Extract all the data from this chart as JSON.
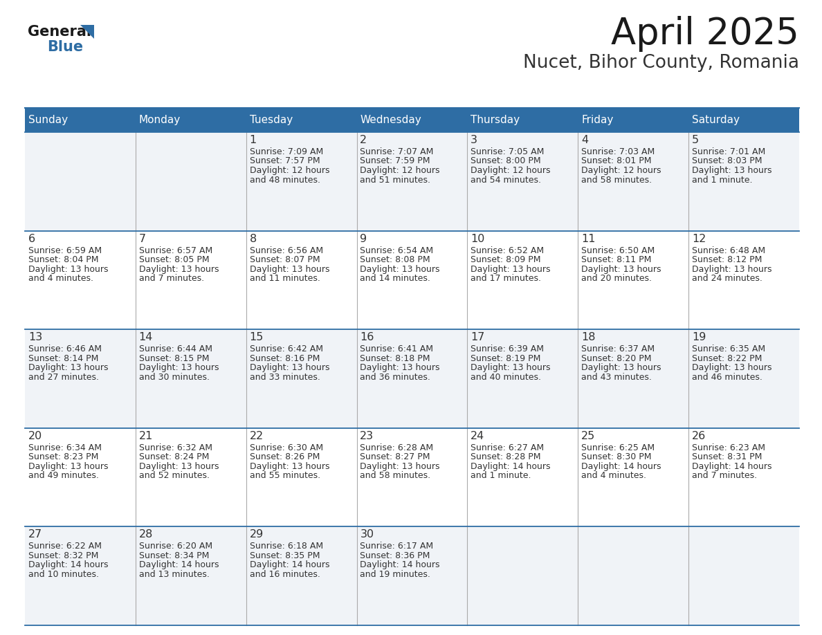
{
  "title": "April 2025",
  "subtitle": "Nucet, Bihor County, Romania",
  "header_bg_color": "#2E6DA4",
  "header_text_color": "#FFFFFF",
  "day_names": [
    "Sunday",
    "Monday",
    "Tuesday",
    "Wednesday",
    "Thursday",
    "Friday",
    "Saturday"
  ],
  "bg_color": "#FFFFFF",
  "cell_bg_light": "#F0F3F7",
  "cell_bg_white": "#FFFFFF",
  "border_color": "#2E6DA4",
  "divider_color": "#AAAAAA",
  "text_color": "#333333",
  "title_color": "#1a1a1a",
  "subtitle_color": "#333333",
  "general_text_color": "#1a1a1a",
  "general_blue_color": "#2E6DA4",
  "days": [
    {
      "date": 1,
      "col": 2,
      "row": 0,
      "sunrise": "7:09 AM",
      "sunset": "7:57 PM",
      "daylight_h": "12 hours",
      "daylight_m": "48 minutes"
    },
    {
      "date": 2,
      "col": 3,
      "row": 0,
      "sunrise": "7:07 AM",
      "sunset": "7:59 PM",
      "daylight_h": "12 hours",
      "daylight_m": "51 minutes"
    },
    {
      "date": 3,
      "col": 4,
      "row": 0,
      "sunrise": "7:05 AM",
      "sunset": "8:00 PM",
      "daylight_h": "12 hours",
      "daylight_m": "54 minutes"
    },
    {
      "date": 4,
      "col": 5,
      "row": 0,
      "sunrise": "7:03 AM",
      "sunset": "8:01 PM",
      "daylight_h": "12 hours",
      "daylight_m": "58 minutes"
    },
    {
      "date": 5,
      "col": 6,
      "row": 0,
      "sunrise": "7:01 AM",
      "sunset": "8:03 PM",
      "daylight_h": "13 hours",
      "daylight_m": "1 minute"
    },
    {
      "date": 6,
      "col": 0,
      "row": 1,
      "sunrise": "6:59 AM",
      "sunset": "8:04 PM",
      "daylight_h": "13 hours",
      "daylight_m": "4 minutes"
    },
    {
      "date": 7,
      "col": 1,
      "row": 1,
      "sunrise": "6:57 AM",
      "sunset": "8:05 PM",
      "daylight_h": "13 hours",
      "daylight_m": "7 minutes"
    },
    {
      "date": 8,
      "col": 2,
      "row": 1,
      "sunrise": "6:56 AM",
      "sunset": "8:07 PM",
      "daylight_h": "13 hours",
      "daylight_m": "11 minutes"
    },
    {
      "date": 9,
      "col": 3,
      "row": 1,
      "sunrise": "6:54 AM",
      "sunset": "8:08 PM",
      "daylight_h": "13 hours",
      "daylight_m": "14 minutes"
    },
    {
      "date": 10,
      "col": 4,
      "row": 1,
      "sunrise": "6:52 AM",
      "sunset": "8:09 PM",
      "daylight_h": "13 hours",
      "daylight_m": "17 minutes"
    },
    {
      "date": 11,
      "col": 5,
      "row": 1,
      "sunrise": "6:50 AM",
      "sunset": "8:11 PM",
      "daylight_h": "13 hours",
      "daylight_m": "20 minutes"
    },
    {
      "date": 12,
      "col": 6,
      "row": 1,
      "sunrise": "6:48 AM",
      "sunset": "8:12 PM",
      "daylight_h": "13 hours",
      "daylight_m": "24 minutes"
    },
    {
      "date": 13,
      "col": 0,
      "row": 2,
      "sunrise": "6:46 AM",
      "sunset": "8:14 PM",
      "daylight_h": "13 hours",
      "daylight_m": "27 minutes"
    },
    {
      "date": 14,
      "col": 1,
      "row": 2,
      "sunrise": "6:44 AM",
      "sunset": "8:15 PM",
      "daylight_h": "13 hours",
      "daylight_m": "30 minutes"
    },
    {
      "date": 15,
      "col": 2,
      "row": 2,
      "sunrise": "6:42 AM",
      "sunset": "8:16 PM",
      "daylight_h": "13 hours",
      "daylight_m": "33 minutes"
    },
    {
      "date": 16,
      "col": 3,
      "row": 2,
      "sunrise": "6:41 AM",
      "sunset": "8:18 PM",
      "daylight_h": "13 hours",
      "daylight_m": "36 minutes"
    },
    {
      "date": 17,
      "col": 4,
      "row": 2,
      "sunrise": "6:39 AM",
      "sunset": "8:19 PM",
      "daylight_h": "13 hours",
      "daylight_m": "40 minutes"
    },
    {
      "date": 18,
      "col": 5,
      "row": 2,
      "sunrise": "6:37 AM",
      "sunset": "8:20 PM",
      "daylight_h": "13 hours",
      "daylight_m": "43 minutes"
    },
    {
      "date": 19,
      "col": 6,
      "row": 2,
      "sunrise": "6:35 AM",
      "sunset": "8:22 PM",
      "daylight_h": "13 hours",
      "daylight_m": "46 minutes"
    },
    {
      "date": 20,
      "col": 0,
      "row": 3,
      "sunrise": "6:34 AM",
      "sunset": "8:23 PM",
      "daylight_h": "13 hours",
      "daylight_m": "49 minutes"
    },
    {
      "date": 21,
      "col": 1,
      "row": 3,
      "sunrise": "6:32 AM",
      "sunset": "8:24 PM",
      "daylight_h": "13 hours",
      "daylight_m": "52 minutes"
    },
    {
      "date": 22,
      "col": 2,
      "row": 3,
      "sunrise": "6:30 AM",
      "sunset": "8:26 PM",
      "daylight_h": "13 hours",
      "daylight_m": "55 minutes"
    },
    {
      "date": 23,
      "col": 3,
      "row": 3,
      "sunrise": "6:28 AM",
      "sunset": "8:27 PM",
      "daylight_h": "13 hours",
      "daylight_m": "58 minutes"
    },
    {
      "date": 24,
      "col": 4,
      "row": 3,
      "sunrise": "6:27 AM",
      "sunset": "8:28 PM",
      "daylight_h": "14 hours",
      "daylight_m": "1 minute"
    },
    {
      "date": 25,
      "col": 5,
      "row": 3,
      "sunrise": "6:25 AM",
      "sunset": "8:30 PM",
      "daylight_h": "14 hours",
      "daylight_m": "4 minutes"
    },
    {
      "date": 26,
      "col": 6,
      "row": 3,
      "sunrise": "6:23 AM",
      "sunset": "8:31 PM",
      "daylight_h": "14 hours",
      "daylight_m": "7 minutes"
    },
    {
      "date": 27,
      "col": 0,
      "row": 4,
      "sunrise": "6:22 AM",
      "sunset": "8:32 PM",
      "daylight_h": "14 hours",
      "daylight_m": "10 minutes"
    },
    {
      "date": 28,
      "col": 1,
      "row": 4,
      "sunrise": "6:20 AM",
      "sunset": "8:34 PM",
      "daylight_h": "14 hours",
      "daylight_m": "13 minutes"
    },
    {
      "date": 29,
      "col": 2,
      "row": 4,
      "sunrise": "6:18 AM",
      "sunset": "8:35 PM",
      "daylight_h": "14 hours",
      "daylight_m": "16 minutes"
    },
    {
      "date": 30,
      "col": 3,
      "row": 4,
      "sunrise": "6:17 AM",
      "sunset": "8:36 PM",
      "daylight_h": "14 hours",
      "daylight_m": "19 minutes"
    }
  ]
}
